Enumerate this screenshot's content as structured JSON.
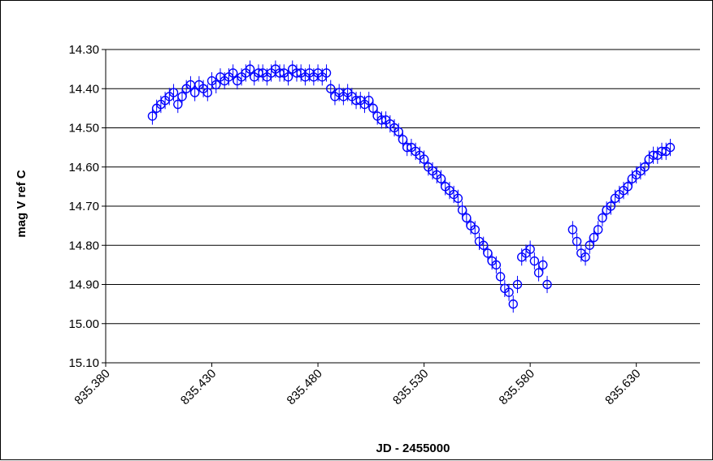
{
  "chart_data": {
    "type": "scatter",
    "title": "",
    "xlabel": "JD - 2455000",
    "ylabel": "mag V ref C",
    "xlim": [
      835.38,
      835.66
    ],
    "ylim": [
      14.3,
      15.1
    ],
    "y_inverted": true,
    "grid": "horizontal",
    "legend": "none",
    "marker": "open-circle-with-error-bars",
    "color": "#0000ff",
    "x_ticks": [
      "835.380",
      "835.430",
      "835.480",
      "835.530",
      "835.580",
      "835.630"
    ],
    "y_ticks": [
      "14.30",
      "14.40",
      "14.50",
      "14.60",
      "14.70",
      "14.80",
      "14.90",
      "15.00",
      "15.10"
    ],
    "error_bar_mag": 0.022,
    "x": [
      835.402,
      835.404,
      835.406,
      835.408,
      835.41,
      835.412,
      835.414,
      835.416,
      835.418,
      835.42,
      835.422,
      835.424,
      835.426,
      835.428,
      835.43,
      835.432,
      835.434,
      835.436,
      835.438,
      835.44,
      835.442,
      835.444,
      835.446,
      835.448,
      835.45,
      835.452,
      835.454,
      835.456,
      835.458,
      835.46,
      835.462,
      835.464,
      835.466,
      835.468,
      835.47,
      835.472,
      835.474,
      835.476,
      835.478,
      835.48,
      835.482,
      835.484,
      835.486,
      835.488,
      835.49,
      835.492,
      835.494,
      835.496,
      835.498,
      835.5,
      835.502,
      835.504,
      835.506,
      835.508,
      835.51,
      835.512,
      835.514,
      835.516,
      835.518,
      835.52,
      835.522,
      835.524,
      835.526,
      835.528,
      835.53,
      835.532,
      835.534,
      835.536,
      835.538,
      835.54,
      835.542,
      835.544,
      835.546,
      835.548,
      835.55,
      835.552,
      835.554,
      835.556,
      835.558,
      835.56,
      835.562,
      835.564,
      835.566,
      835.568,
      835.57,
      835.572,
      835.574,
      835.576,
      835.578,
      835.58,
      835.582,
      835.584,
      835.586,
      835.588,
      835.6,
      835.602,
      835.604,
      835.606,
      835.608,
      835.61,
      835.612,
      835.614,
      835.616,
      835.618,
      835.62,
      835.622,
      835.624,
      835.626,
      835.628,
      835.63,
      835.632,
      835.634,
      835.636,
      835.638,
      835.64,
      835.642,
      835.644,
      835.646
    ],
    "y": [
      14.47,
      14.45,
      14.44,
      14.43,
      14.42,
      14.41,
      14.44,
      14.42,
      14.4,
      14.39,
      14.41,
      14.39,
      14.4,
      14.41,
      14.38,
      14.39,
      14.37,
      14.38,
      14.37,
      14.36,
      14.38,
      14.37,
      14.36,
      14.35,
      14.37,
      14.36,
      14.36,
      14.37,
      14.36,
      14.35,
      14.36,
      14.36,
      14.37,
      14.35,
      14.36,
      14.36,
      14.37,
      14.36,
      14.37,
      14.36,
      14.37,
      14.36,
      14.4,
      14.42,
      14.41,
      14.42,
      14.41,
      14.42,
      14.43,
      14.43,
      14.44,
      14.43,
      14.45,
      14.47,
      14.48,
      14.48,
      14.49,
      14.5,
      14.51,
      14.53,
      14.55,
      14.55,
      14.56,
      14.57,
      14.58,
      14.6,
      14.61,
      14.62,
      14.63,
      14.65,
      14.66,
      14.67,
      14.68,
      14.71,
      14.73,
      14.75,
      14.76,
      14.79,
      14.8,
      14.82,
      14.84,
      14.85,
      14.88,
      14.91,
      14.92,
      14.95,
      14.9,
      14.83,
      14.82,
      14.81,
      14.84,
      14.87,
      14.85,
      14.9,
      14.76,
      14.79,
      14.82,
      14.83,
      14.8,
      14.78,
      14.76,
      14.73,
      14.71,
      14.7,
      14.68,
      14.67,
      14.66,
      14.65,
      14.63,
      14.62,
      14.61,
      14.6,
      14.58,
      14.57,
      14.57,
      14.56,
      14.56,
      14.55
    ]
  }
}
